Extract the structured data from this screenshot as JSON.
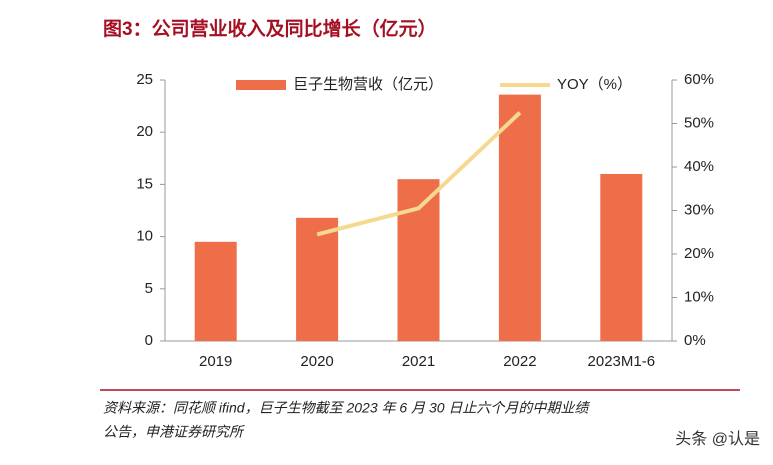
{
  "chart_data": {
    "type": "bar",
    "title": "图3：公司营业收入及同比增长（亿元）",
    "categories": [
      "2019",
      "2020",
      "2021",
      "2022",
      "2023M1-6"
    ],
    "series": [
      {
        "name": "巨子生物营收（亿元）",
        "color": "#ee6e4a",
        "type": "bar",
        "values": [
          9.5,
          11.8,
          15.5,
          23.6,
          16.0
        ]
      },
      {
        "name": "YOY（%）",
        "color": "#f5d98f",
        "type": "line",
        "axis": "y2",
        "values": [
          null,
          24.5,
          30.5,
          52.5,
          null
        ]
      }
    ],
    "ylim": [
      0,
      25
    ],
    "yticks": [
      0,
      5,
      10,
      15,
      20,
      25
    ],
    "y2lim": [
      0,
      60
    ],
    "y2ticks": [
      {
        "value": 0,
        "label": "0%"
      },
      {
        "value": 10,
        "label": "10%"
      },
      {
        "value": 20,
        "label": "20%"
      },
      {
        "value": 30,
        "label": "30%"
      },
      {
        "value": 40,
        "label": "40%"
      },
      {
        "value": 50,
        "label": "50%"
      },
      {
        "value": 60,
        "label": "60%"
      }
    ],
    "legend": "top",
    "source": [
      "资料来源：同花顺 ifind，巨子生物截至 2023 年 6 月 30 日止六个月的中期业绩",
      "公告，申港证券研究所"
    ],
    "watermark": "头条 @认是"
  }
}
